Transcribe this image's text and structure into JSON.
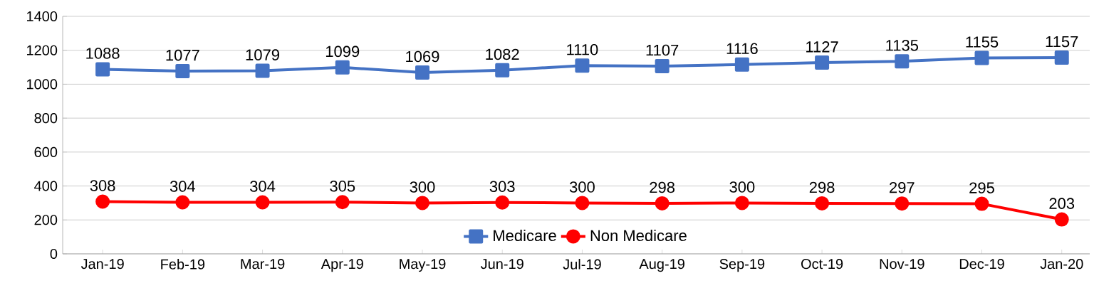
{
  "chart_data": {
    "type": "line",
    "categories": [
      "Jan-19",
      "Feb-19",
      "Mar-19",
      "Apr-19",
      "May-19",
      "Jun-19",
      "Jul-19",
      "Aug-19",
      "Sep-19",
      "Oct-19",
      "Nov-19",
      "Dec-19",
      "Jan-20"
    ],
    "series": [
      {
        "name": "Medicare",
        "color": "#4472c4",
        "marker": "square",
        "values": [
          1088,
          1077,
          1079,
          1099,
          1069,
          1082,
          1110,
          1107,
          1116,
          1127,
          1135,
          1155,
          1157
        ]
      },
      {
        "name": "Non Medicare",
        "color": "#ff0000",
        "marker": "circle",
        "values": [
          308,
          304,
          304,
          305,
          300,
          303,
          300,
          298,
          300,
          298,
          297,
          295,
          203
        ]
      }
    ],
    "ylim": [
      0,
      1400
    ],
    "yticks": [
      0,
      200,
      400,
      600,
      800,
      1000,
      1200,
      1400
    ],
    "grid": "y",
    "legend": "bottom",
    "data_labels": true,
    "line_style": "solid"
  }
}
